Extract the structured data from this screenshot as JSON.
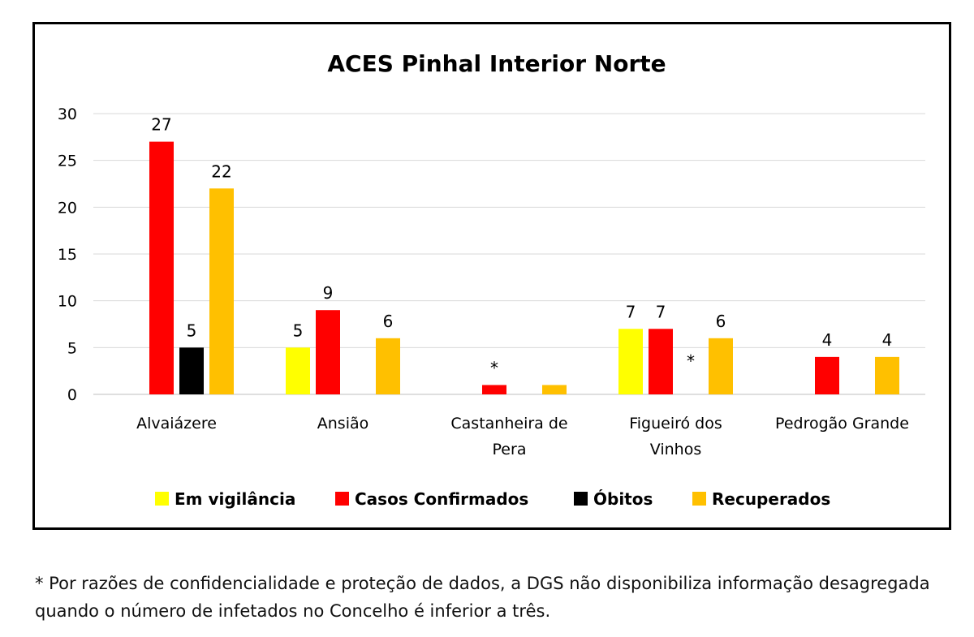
{
  "chart_data": {
    "type": "bar",
    "title": "ACES Pinhal Interior Norte",
    "xlabel": "",
    "ylabel": "",
    "categories": [
      [
        "Alvaiázere"
      ],
      [
        "Ansião"
      ],
      [
        "Castanheira de",
        "Pera"
      ],
      [
        "Figueiró dos",
        "Vinhos"
      ],
      [
        "Pedrogão Grande"
      ]
    ],
    "series": [
      {
        "name": "Em vigilância",
        "color": "#ffff00",
        "values": [
          null,
          5,
          null,
          7,
          null
        ],
        "labels": [
          "",
          "5",
          "",
          "7",
          ""
        ]
      },
      {
        "name": "Casos Confirmados",
        "color": "#ff0000",
        "values": [
          27,
          9,
          1,
          7,
          4
        ],
        "labels": [
          "27",
          "9",
          "*",
          "7",
          "4"
        ]
      },
      {
        "name": "Óbitos",
        "color": "#000000",
        "values": [
          5,
          null,
          null,
          null,
          null
        ],
        "labels": [
          "5",
          "",
          "",
          "*",
          ""
        ]
      },
      {
        "name": "Recuperados",
        "color": "#ffc000",
        "values": [
          22,
          6,
          1,
          6,
          4
        ],
        "labels": [
          "22",
          "6",
          "",
          "6",
          "4"
        ]
      }
    ],
    "ylim": [
      0,
      30
    ],
    "yticks": [
      0,
      5,
      10,
      15,
      20,
      25,
      30
    ],
    "grid": true,
    "legend": "bottom"
  },
  "footnote": "* Por razões de confidencialidade e proteção de dados, a DGS não disponibiliza informação desagregada quando o número de infetados no Concelho é inferior a três."
}
